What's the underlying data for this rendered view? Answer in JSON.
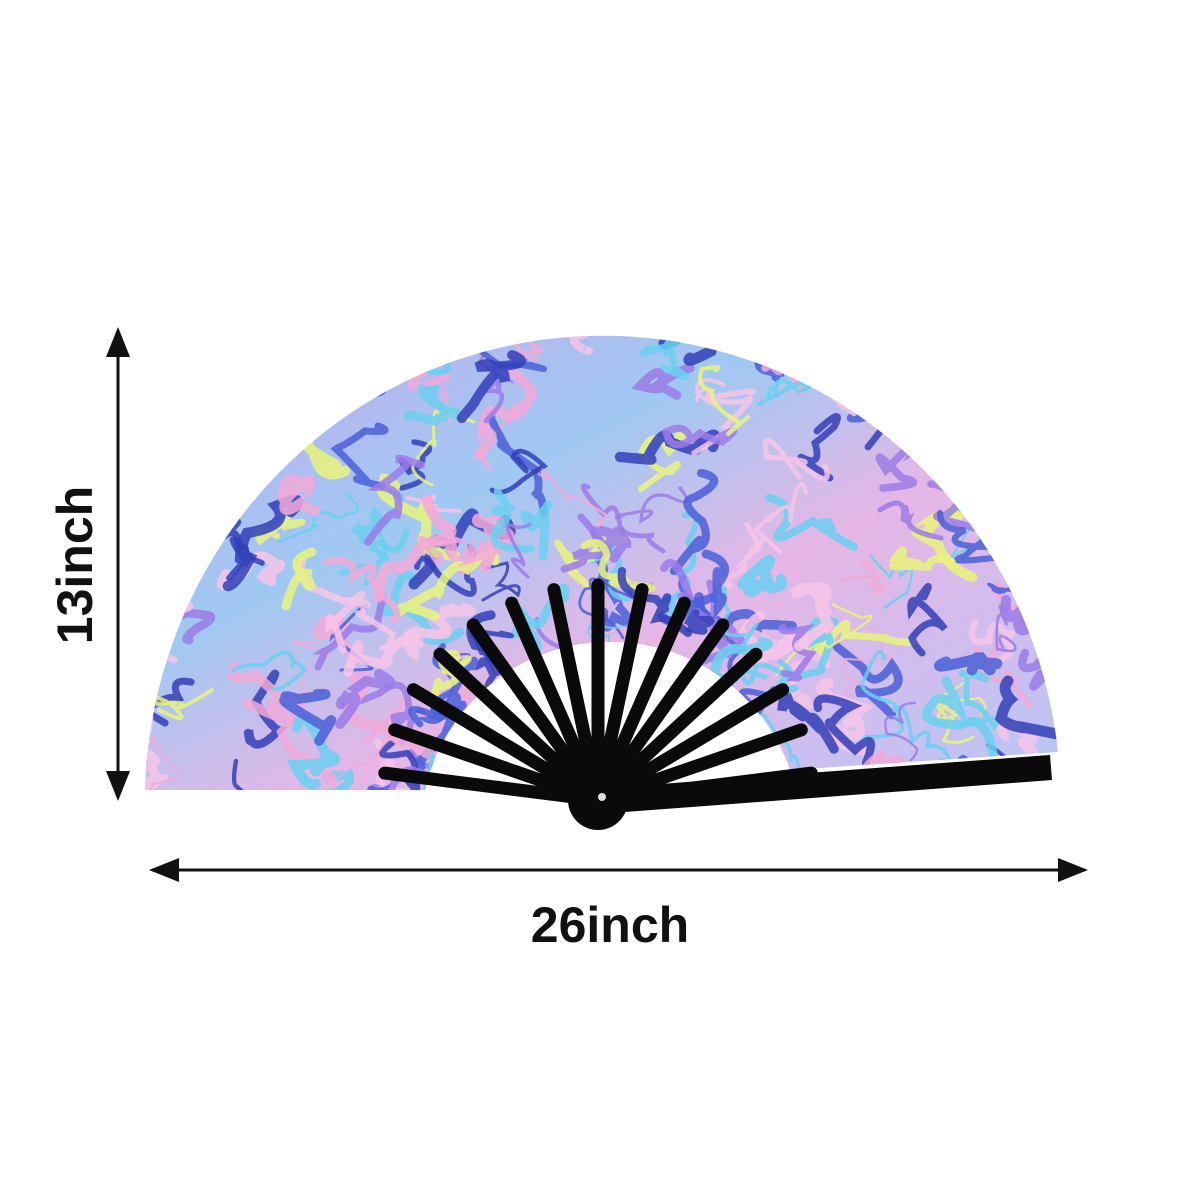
{
  "height_label": "13inch",
  "width_label": "26inch"
}
